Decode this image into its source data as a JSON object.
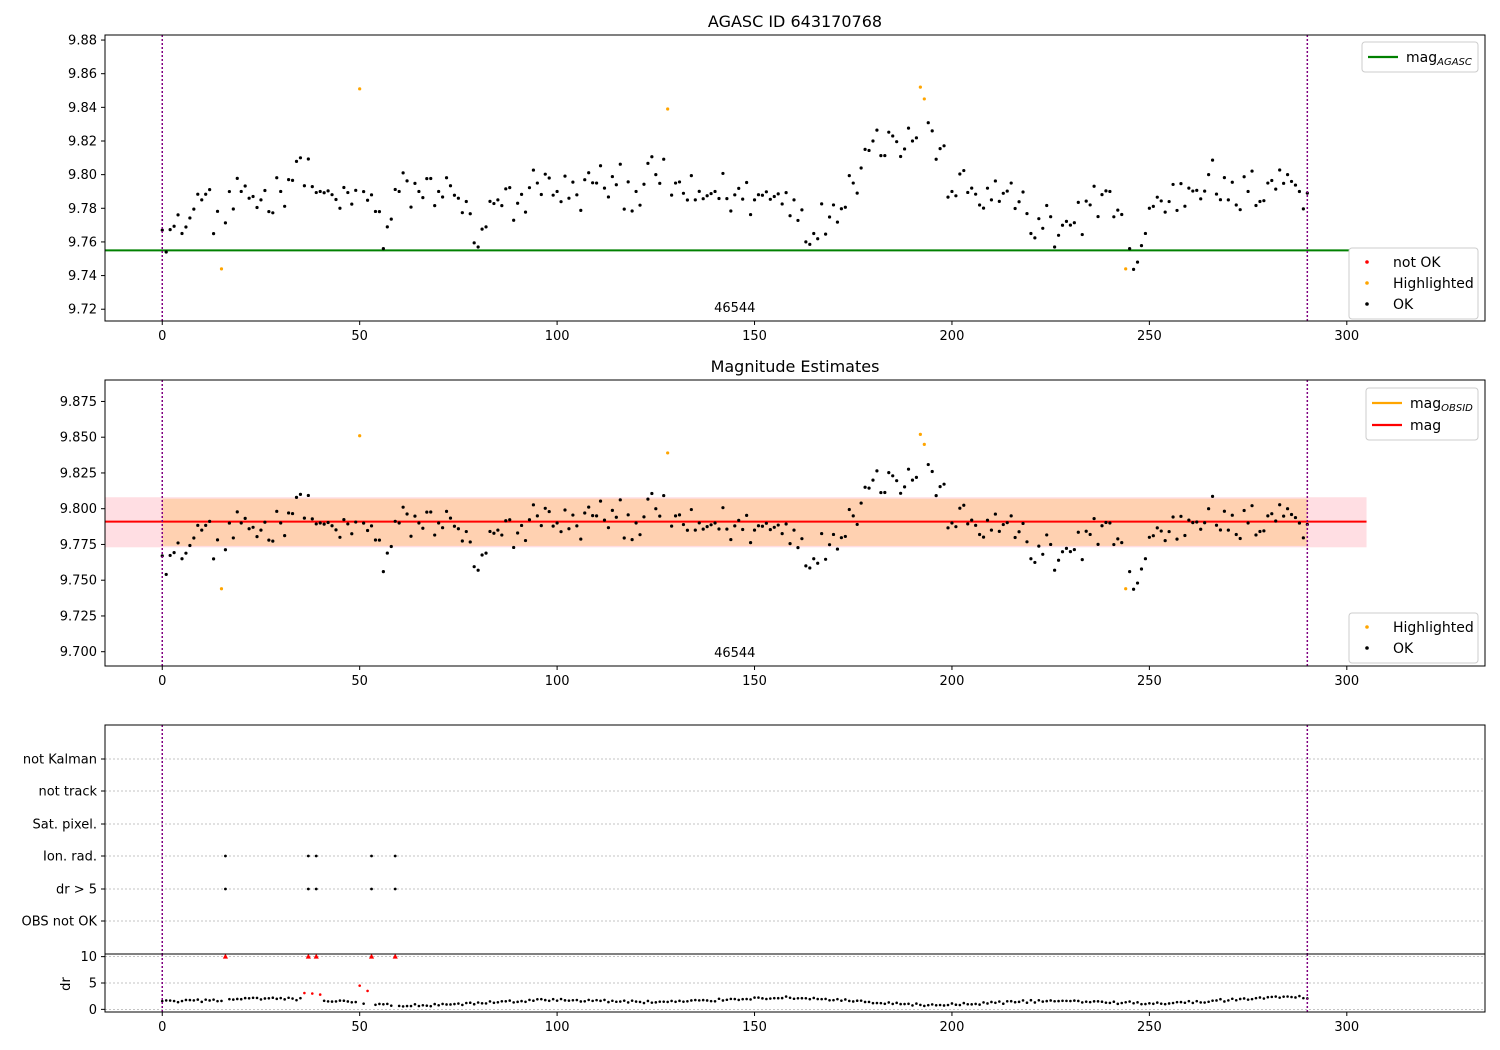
{
  "chart_data": [
    {
      "type": "scatter",
      "title": "AGASC ID 643170768",
      "xlim": [
        -14.5,
        335
      ],
      "ylim": [
        9.713,
        9.883
      ],
      "yticks": [
        "9.72",
        "9.74",
        "9.76",
        "9.78",
        "9.80",
        "9.82",
        "9.84",
        "9.86",
        "9.88"
      ],
      "xticks": [
        "0",
        "50",
        "100",
        "150",
        "200",
        "250",
        "300"
      ],
      "annotation": "46544",
      "obs_boundaries": [
        0,
        290
      ],
      "mag_agasc": 9.755,
      "legend_lines": [
        {
          "label": "mag",
          "sub": "AGASC",
          "color": "#008000"
        }
      ],
      "legend_points": [
        {
          "label": "not OK",
          "color": "#ff0000"
        },
        {
          "label": "Highlighted",
          "color": "#ffa500"
        },
        {
          "label": "OK",
          "color": "#000000"
        }
      ],
      "highlighted": {
        "x": [
          15,
          50,
          128,
          192,
          193,
          244
        ],
        "y": [
          9.744,
          9.851,
          9.839,
          9.852,
          9.845,
          9.744
        ]
      },
      "ok_series": {
        "x": [
          0,
          5,
          10,
          15,
          20,
          25,
          30,
          35,
          40,
          45,
          50,
          55,
          56,
          60,
          65,
          70,
          75,
          80,
          85,
          90,
          95,
          100,
          105,
          110,
          115,
          120,
          125,
          130,
          135,
          140,
          145,
          150,
          155,
          160,
          165,
          170,
          175,
          178,
          180,
          185,
          190,
          195,
          200,
          205,
          210,
          215,
          220,
          225,
          226,
          230,
          235,
          240,
          245,
          247,
          250,
          255,
          260,
          265,
          270,
          275,
          280,
          285,
          290
        ],
        "y": [
          9.767,
          9.765,
          9.785,
          9.77,
          9.79,
          9.785,
          9.79,
          9.81,
          9.79,
          9.78,
          9.786,
          9.778,
          9.756,
          9.79,
          9.79,
          9.79,
          9.786,
          9.757,
          9.785,
          9.783,
          9.795,
          9.79,
          9.788,
          9.795,
          9.794,
          9.79,
          9.8,
          9.795,
          9.785,
          9.79,
          9.788,
          9.785,
          9.787,
          9.785,
          9.765,
          9.782,
          9.795,
          9.815,
          9.82,
          9.823,
          9.82,
          9.826,
          9.79,
          9.792,
          9.785,
          9.795,
          9.765,
          9.775,
          9.757,
          9.77,
          9.782,
          9.79,
          9.756,
          9.748,
          9.78,
          9.784,
          9.792,
          9.8,
          9.785,
          9.79,
          9.795,
          9.8,
          9.789
        ]
      }
    },
    {
      "type": "scatter",
      "title": "Magnitude Estimates",
      "xlim": [
        -14.5,
        335
      ],
      "ylim": [
        9.69,
        9.89
      ],
      "yticks": [
        "9.700",
        "9.725",
        "9.750",
        "9.775",
        "9.800",
        "9.825",
        "9.850",
        "9.875"
      ],
      "xticks": [
        "0",
        "50",
        "100",
        "150",
        "200",
        "250",
        "300"
      ],
      "annotation": "46544",
      "obs_boundaries": [
        0,
        290
      ],
      "mag": 9.791,
      "mag_obsid": 9.791,
      "band_outer": [
        9.773,
        9.808
      ],
      "band_inner": [
        9.774,
        9.807
      ],
      "legend_lines": [
        {
          "label": "mag",
          "sub": "OBSID",
          "color": "#ffa500"
        },
        {
          "label": "mag",
          "sub": "",
          "color": "#ff0000"
        }
      ],
      "legend_points": [
        {
          "label": "Highlighted",
          "color": "#ffa500"
        },
        {
          "label": "OK",
          "color": "#000000"
        }
      ]
    },
    {
      "type": "scatter",
      "flags": [
        "not Kalman",
        "not track",
        "Sat. pixel.",
        "Ion. rad.",
        "dr > 5",
        "OBS not OK"
      ],
      "flag_points": {
        "Ion. rad.": [
          16,
          37,
          39,
          53,
          59
        ],
        "dr > 5": [
          16,
          37,
          39,
          53,
          59
        ]
      },
      "obs_boundaries": [
        0,
        290
      ]
    },
    {
      "type": "scatter",
      "ylabel": "dr",
      "yticks": [
        "0",
        "5",
        "10"
      ],
      "ylim": [
        -0.5,
        10.5
      ],
      "xticks": [
        "0",
        "50",
        "100",
        "150",
        "200",
        "250",
        "300"
      ],
      "xlim": [
        -14.5,
        335
      ],
      "obs_boundaries": [
        0,
        290
      ],
      "red_triangles": [
        16,
        37,
        39,
        53,
        59
      ],
      "red_points": {
        "x": [
          36,
          38,
          40,
          50,
          52
        ],
        "y": [
          3.1,
          3.0,
          2.8,
          4.5,
          3.5
        ]
      }
    }
  ]
}
